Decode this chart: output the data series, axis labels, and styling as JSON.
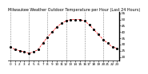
{
  "title": "Milwaukee Weather Outdoor Temperature per Hour (Last 24 Hours)",
  "hours": [
    0,
    1,
    2,
    3,
    4,
    5,
    6,
    7,
    8,
    9,
    10,
    11,
    12,
    13,
    14,
    15,
    16,
    17,
    18,
    19,
    20,
    21,
    22,
    23
  ],
  "temps": [
    28,
    26,
    25,
    24,
    23,
    24,
    26,
    31,
    36,
    40,
    44,
    47,
    49,
    50,
    50,
    50,
    49,
    46,
    42,
    38,
    34,
    31,
    28,
    27
  ],
  "line_color": "#ff0000",
  "dot_color": "#000000",
  "bg_color": "#ffffff",
  "grid_color": "#888888",
  "ylim": [
    17,
    56
  ],
  "yticks": [
    20,
    25,
    30,
    35,
    40,
    45,
    50,
    55
  ],
  "ytick_labels": [
    "20",
    "25",
    "30",
    "35",
    "40",
    "45",
    "50",
    "55"
  ],
  "xlim": [
    -0.5,
    23.5
  ],
  "grid_hours": [
    0,
    4,
    8,
    12,
    16,
    20
  ],
  "xlabel_fontsize": 3.0,
  "ylabel_fontsize": 3.0,
  "title_fontsize": 3.5,
  "line_width": 0.5,
  "dot_size": 1.5
}
